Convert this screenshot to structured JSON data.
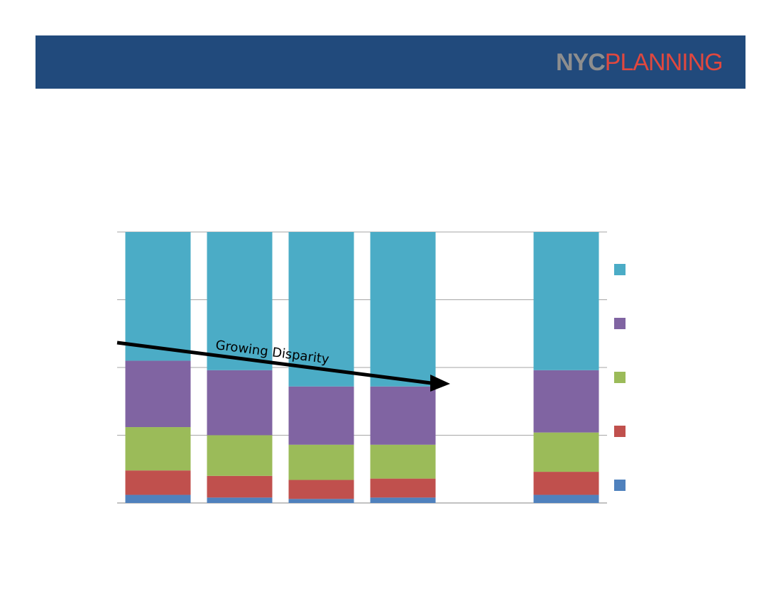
{
  "header": {
    "logo": {
      "part1": "NYC",
      "part2": "PLANNING"
    }
  },
  "colors": {
    "header": "#214a7c",
    "logo_gray": "#8e8e8e",
    "logo_red": "#e0483f"
  },
  "chart_data": {
    "type": "bar",
    "stacked": true,
    "categories": [
      "",
      "",
      "",
      "",
      "",
      ""
    ],
    "ylim": [
      0,
      100
    ],
    "grid": true,
    "legend_position": "right",
    "series": [
      {
        "color": "#4f81bd",
        "values": [
          3,
          2,
          1.5,
          2,
          0,
          3
        ]
      },
      {
        "color": "#c0504d",
        "values": [
          9,
          8,
          7,
          7,
          0,
          8.5
        ]
      },
      {
        "color": "#9bbb59",
        "values": [
          16,
          15,
          13,
          12.5,
          0,
          14.5
        ]
      },
      {
        "color": "#8064a2",
        "values": [
          24.5,
          24,
          21.5,
          21.5,
          0,
          23
        ]
      },
      {
        "color": "#4bacc6",
        "values": [
          47.5,
          51,
          57,
          57,
          0,
          51
        ]
      }
    ],
    "annotation": {
      "text": "Growing Disparity"
    }
  }
}
